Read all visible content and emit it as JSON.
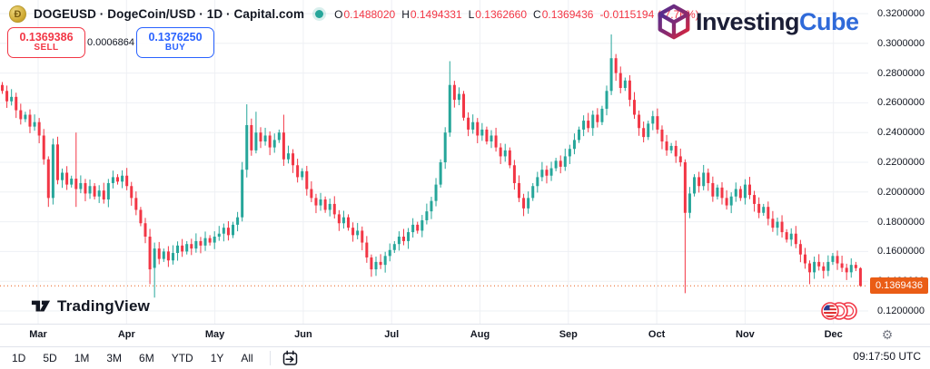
{
  "header": {
    "symbol_title": "DOGEUSD · DogeCoin/USD · 1D · Capital.com",
    "ohlc": {
      "o_label": "O",
      "o": "0.1488020",
      "h_label": "H",
      "h": "0.1494331",
      "l_label": "L",
      "l": "0.1362660",
      "c_label": "C",
      "c": "0.1369436",
      "change": "-0.0115194 (-7.76%)"
    },
    "sell": {
      "price": "0.1369386",
      "label": "SELL"
    },
    "spread": "0.0006864",
    "buy": {
      "price": "0.1376250",
      "label": "BUY"
    }
  },
  "branding": {
    "investingcube_part1": "Investing",
    "investingcube_part2": "Cube",
    "tradingview": "TradingView"
  },
  "icons": {
    "dogecoin": "Đ",
    "gear": "⚙"
  },
  "axes": {
    "price_ticks": [
      "0.3200000",
      "0.3000000",
      "0.2800000",
      "0.2600000",
      "0.2400000",
      "0.2200000",
      "0.2000000",
      "0.1800000",
      "0.1600000",
      "0.1400000",
      "0.1200000"
    ],
    "months": [
      "Mar",
      "Apr",
      "May",
      "Jun",
      "Jul",
      "Aug",
      "Sep",
      "Oct",
      "Nov",
      "Dec"
    ],
    "current_price": "0.1369436",
    "timezone": "09:17:50 UTC"
  },
  "toolbar": {
    "ranges": [
      "1D",
      "5D",
      "1M",
      "3M",
      "6M",
      "YTD",
      "1Y",
      "All"
    ]
  },
  "colors": {
    "up": "#26a69a",
    "down": "#f23645",
    "grid": "#eef0f4",
    "price_line": "#ea5d16",
    "accent_blue": "#2962ff",
    "text": "#131722",
    "muted": "#787b86"
  },
  "chart_data": {
    "type": "candlestick",
    "title": "DOGEUSD DogeCoin/USD Daily, Capital.com (values estimated from pixels)",
    "interval": "1D",
    "price_axis": {
      "top": 0.32,
      "bottom": 0.12,
      "tick_step": 0.02
    },
    "x_axis_months": [
      "Mar",
      "Apr",
      "May",
      "Jun",
      "Jul",
      "Aug",
      "Sep",
      "Oct",
      "Nov",
      "Dec"
    ],
    "legend_ohlc": {
      "open": 0.148802,
      "high": 0.1494331,
      "low": 0.136266,
      "close": 0.1369436,
      "change": -0.0115194,
      "change_pct": -7.76
    },
    "open_first": 0.272,
    "closes": [
      0.268,
      0.261,
      0.264,
      0.255,
      0.249,
      0.252,
      0.244,
      0.247,
      0.238,
      0.222,
      0.196,
      0.232,
      0.208,
      0.213,
      0.205,
      0.209,
      0.202,
      0.206,
      0.199,
      0.204,
      0.197,
      0.201,
      0.195,
      0.206,
      0.21,
      0.207,
      0.211,
      0.204,
      0.196,
      0.188,
      0.179,
      0.17,
      0.148,
      0.162,
      0.155,
      0.16,
      0.154,
      0.159,
      0.164,
      0.16,
      0.165,
      0.162,
      0.167,
      0.164,
      0.169,
      0.166,
      0.17,
      0.172,
      0.176,
      0.171,
      0.178,
      0.183,
      0.215,
      0.245,
      0.228,
      0.24,
      0.234,
      0.238,
      0.23,
      0.235,
      0.24,
      0.222,
      0.226,
      0.218,
      0.21,
      0.214,
      0.202,
      0.196,
      0.191,
      0.195,
      0.188,
      0.192,
      0.185,
      0.179,
      0.183,
      0.176,
      0.171,
      0.174,
      0.166,
      0.156,
      0.148,
      0.153,
      0.151,
      0.157,
      0.161,
      0.165,
      0.17,
      0.167,
      0.173,
      0.178,
      0.174,
      0.181,
      0.187,
      0.194,
      0.205,
      0.22,
      0.24,
      0.272,
      0.262,
      0.266,
      0.25,
      0.242,
      0.247,
      0.238,
      0.242,
      0.234,
      0.238,
      0.23,
      0.224,
      0.228,
      0.218,
      0.206,
      0.196,
      0.189,
      0.196,
      0.204,
      0.21,
      0.215,
      0.211,
      0.216,
      0.221,
      0.217,
      0.224,
      0.229,
      0.235,
      0.242,
      0.248,
      0.243,
      0.252,
      0.247,
      0.256,
      0.268,
      0.29,
      0.28,
      0.27,
      0.275,
      0.262,
      0.252,
      0.243,
      0.237,
      0.246,
      0.251,
      0.242,
      0.234,
      0.228,
      0.231,
      0.224,
      0.22,
      0.186,
      0.199,
      0.21,
      0.204,
      0.213,
      0.206,
      0.197,
      0.203,
      0.196,
      0.191,
      0.197,
      0.202,
      0.196,
      0.205,
      0.198,
      0.192,
      0.186,
      0.19,
      0.182,
      0.176,
      0.18,
      0.173,
      0.168,
      0.172,
      0.165,
      0.158,
      0.152,
      0.146,
      0.153,
      0.15,
      0.147,
      0.153,
      0.157,
      0.152,
      0.149,
      0.146,
      0.151,
      0.1488,
      0.1369436
    ],
    "specials": {
      "10": [
        null,
        null,
        0.19,
        null
      ],
      "11": [
        0.196,
        0.236,
        null,
        0.232
      ],
      "16": [
        null,
        0.24,
        0.19,
        null
      ],
      "32": [
        null,
        null,
        0.138,
        null
      ],
      "33": [
        0.149,
        0.166,
        0.129,
        0.162
      ],
      "53": [
        null,
        0.259,
        null,
        null
      ],
      "55": [
        null,
        0.254,
        null,
        null
      ],
      "61": [
        null,
        0.252,
        null,
        null
      ],
      "80": [
        null,
        null,
        0.143,
        null
      ],
      "97": [
        null,
        0.288,
        null,
        null
      ],
      "132": [
        null,
        0.306,
        null,
        null
      ],
      "148": [
        0.22,
        0.222,
        0.132,
        0.186
      ],
      "175": [
        null,
        null,
        0.138,
        null
      ],
      "186": [
        0.148802,
        0.1494331,
        0.136266,
        0.1369436
      ]
    },
    "wick": {
      "base": 0.002,
      "unit": 0.0008,
      "steps": 5,
      "m1": 7,
      "m2": 3
    },
    "up_color": "#26a69a",
    "down_color": "#f23645",
    "grid": true,
    "last_price": 0.1369436
  }
}
